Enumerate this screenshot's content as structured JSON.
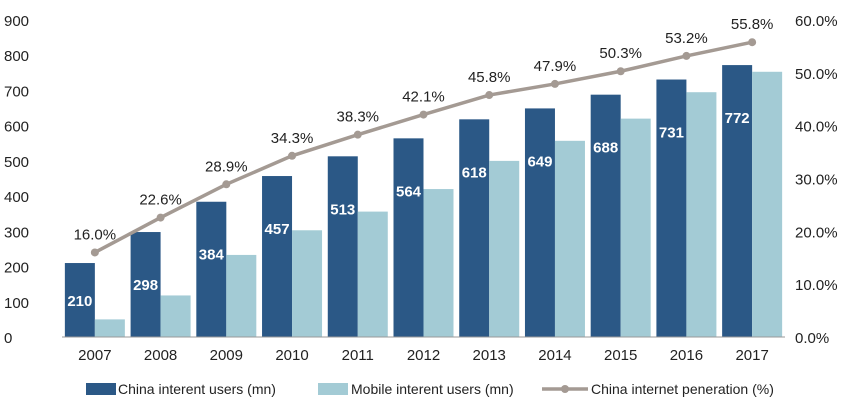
{
  "chart_data": {
    "type": "bar",
    "categories": [
      "2007",
      "2008",
      "2009",
      "2010",
      "2011",
      "2012",
      "2013",
      "2014",
      "2015",
      "2016",
      "2017"
    ],
    "series": [
      {
        "name": "China interent users (mn)",
        "kind": "bar",
        "color": "#2b5886",
        "values": [
          210,
          298,
          384,
          457,
          513,
          564,
          618,
          649,
          688,
          731,
          772
        ],
        "data_labels": [
          "210",
          "298",
          "384",
          "457",
          "513",
          "564",
          "618",
          "649",
          "688",
          "731",
          "772"
        ]
      },
      {
        "name": "Mobile interent users (mn)",
        "kind": "bar",
        "color": "#a3cbd5",
        "values": [
          50,
          118,
          233,
          303,
          356,
          420,
          500,
          557,
          620,
          695,
          753
        ]
      },
      {
        "name": "China internet peneration (%)",
        "kind": "line",
        "axis": "right",
        "color": "#a49a93",
        "values": [
          16.0,
          22.6,
          28.9,
          34.3,
          38.3,
          42.1,
          45.8,
          47.9,
          50.3,
          53.2,
          55.8
        ],
        "data_labels": [
          "16.0%",
          "22.6%",
          "28.9%",
          "34.3%",
          "38.3%",
          "42.1%",
          "45.8%",
          "47.9%",
          "50.3%",
          "53.2%",
          "55.8%"
        ]
      }
    ],
    "ylim": [
      0,
      900
    ],
    "yticks": [
      "0",
      "100",
      "200",
      "300",
      "400",
      "500",
      "600",
      "700",
      "800",
      "900"
    ],
    "y2lim": [
      0,
      60
    ],
    "y2ticks": [
      "0.0%",
      "10.0%",
      "20.0%",
      "30.0%",
      "40.0%",
      "50.0%",
      "60.0%"
    ],
    "grid": false,
    "legend_position": "bottom"
  }
}
